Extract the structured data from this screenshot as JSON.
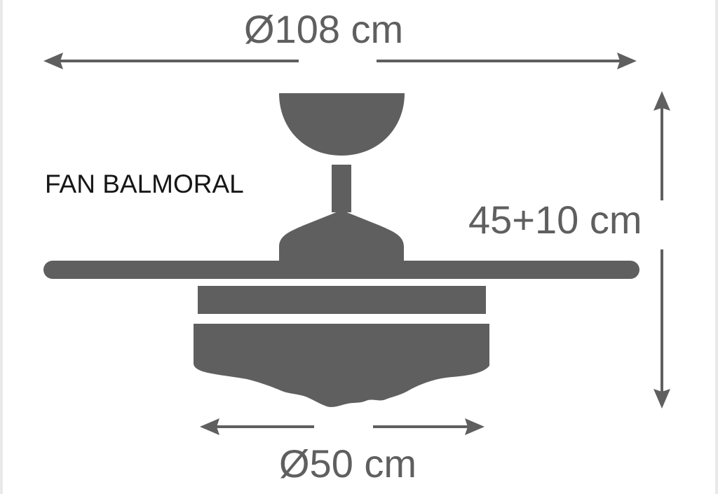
{
  "model_name": "FAN BALMORAL",
  "dimensions": {
    "overall_diameter": "Ø108 cm",
    "height": "45+10 cm",
    "light_diameter": "Ø50 cm"
  },
  "colors": {
    "fan_fill": "#5f5f5f",
    "arrow": "#5f5f5f",
    "text_dark": "#161616",
    "background": "#ffffff"
  }
}
